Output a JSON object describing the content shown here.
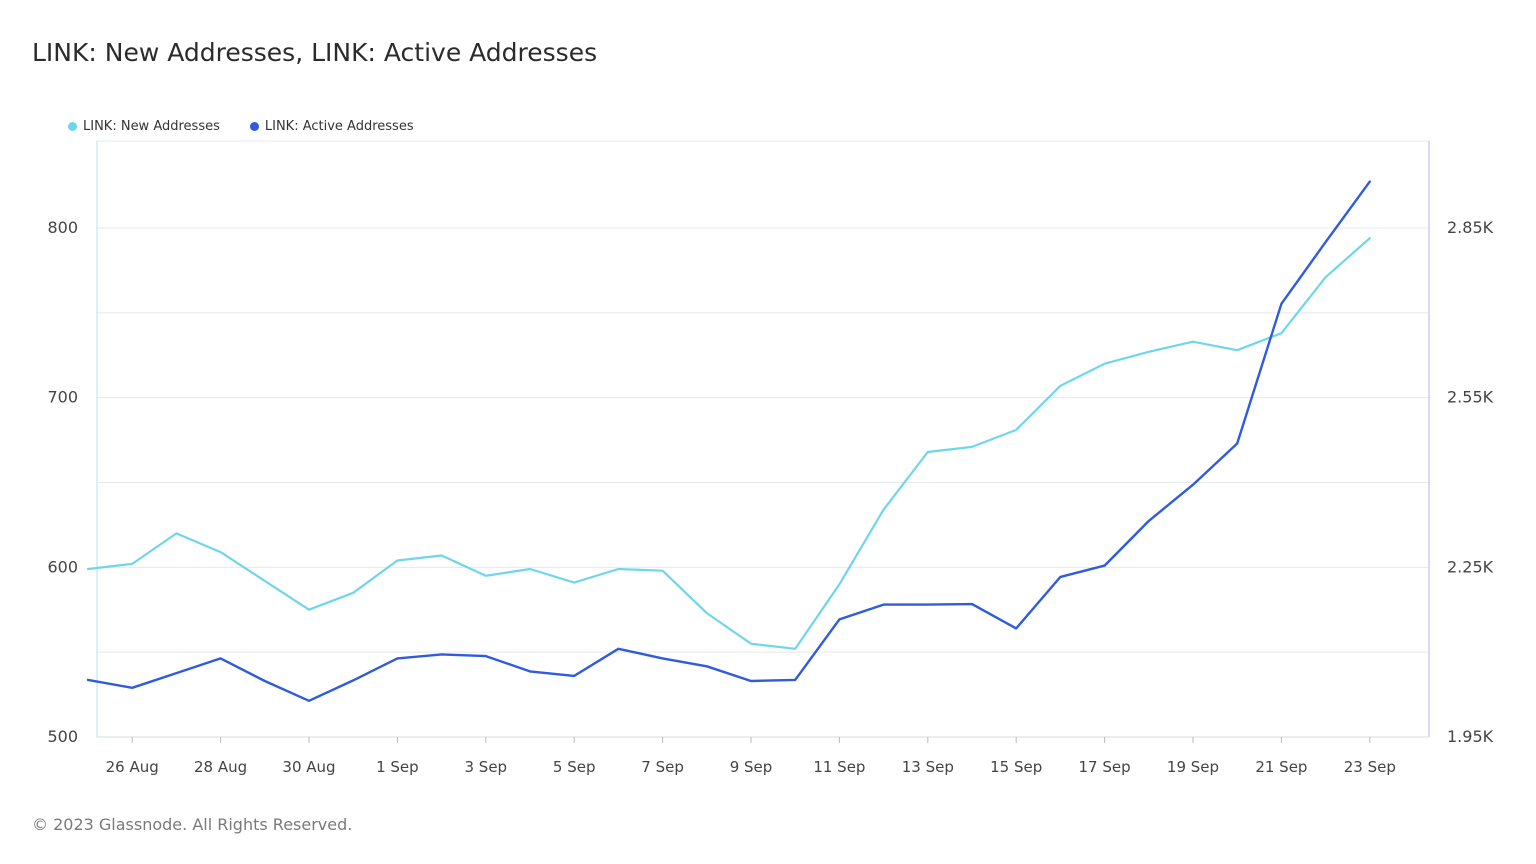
{
  "header": {
    "title": "LINK: New Addresses, LINK: Active Addresses"
  },
  "legend": [
    {
      "label": "LINK: New Addresses",
      "color": "#6fd6ea"
    },
    {
      "label": "LINK: Active Addresses",
      "color": "#2f5bdc"
    }
  ],
  "footer": {
    "copyright": "© 2023 Glassnode. All Rights Reserved."
  },
  "chart_data": {
    "type": "line",
    "title": "LINK: New Addresses, LINK: Active Addresses",
    "x_tick_labels": [
      "26 Aug",
      "28 Aug",
      "30 Aug",
      "1 Sep",
      "3 Sep",
      "5 Sep",
      "7 Sep",
      "9 Sep",
      "11 Sep",
      "13 Sep",
      "15 Sep",
      "17 Sep",
      "19 Sep",
      "21 Sep",
      "23 Sep"
    ],
    "y_left": {
      "ticks": [
        "800",
        "700",
        "600",
        "500"
      ],
      "range": [
        500,
        850
      ]
    },
    "y_right": {
      "ticks": [
        "2.85K",
        "2.55K",
        "2.25K",
        "1.95K"
      ],
      "range": [
        1950,
        3000
      ]
    },
    "grid": true,
    "legend_position": "top-left",
    "x": [
      "25 Aug",
      "26 Aug",
      "27 Aug",
      "28 Aug",
      "29 Aug",
      "30 Aug",
      "31 Aug",
      "1 Sep",
      "2 Sep",
      "3 Sep",
      "4 Sep",
      "5 Sep",
      "6 Sep",
      "7 Sep",
      "8 Sep",
      "9 Sep",
      "10 Sep",
      "11 Sep",
      "12 Sep",
      "13 Sep",
      "14 Sep",
      "15 Sep",
      "16 Sep",
      "17 Sep",
      "18 Sep",
      "19 Sep",
      "20 Sep",
      "21 Sep",
      "22 Sep",
      "23 Sep"
    ],
    "series": [
      {
        "name": "LINK: New Addresses",
        "axis": "left",
        "color": "#6fd6ea",
        "values": [
          599,
          602,
          620,
          609,
          592,
          575,
          585,
          604,
          607,
          595,
          599,
          591,
          599,
          598,
          573,
          555,
          552,
          590,
          634,
          668,
          671,
          681,
          707,
          720,
          727,
          733,
          728,
          738,
          771,
          794
        ]
      },
      {
        "name": "LINK: Active Addresses",
        "axis": "right",
        "color": "#2f5bdc",
        "values": [
          2051,
          2037,
          2063,
          2089,
          2049,
          2014,
          2050,
          2089,
          2096,
          2093,
          2066,
          2058,
          2106,
          2089,
          2075,
          2049,
          2051,
          2158,
          2184,
          2184,
          2185,
          2142,
          2233,
          2253,
          2332,
          2396,
          2469,
          2716,
          2825,
          2932
        ]
      }
    ]
  }
}
